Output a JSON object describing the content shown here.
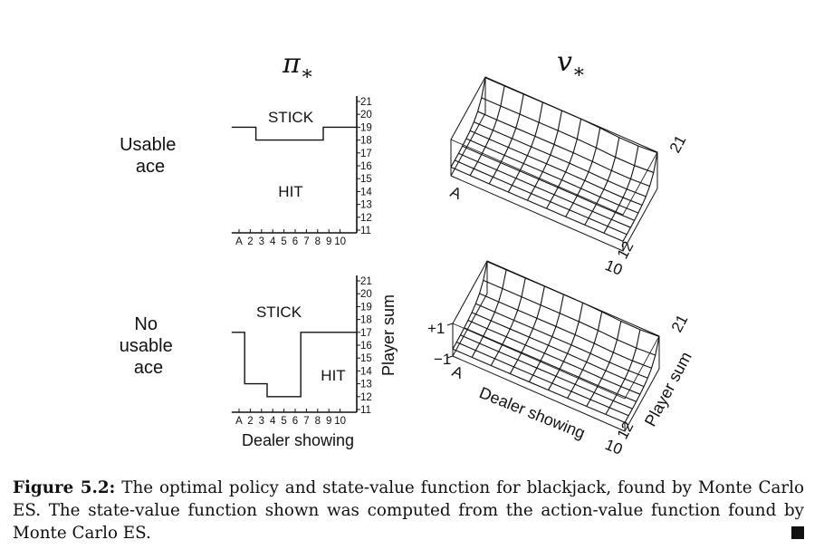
{
  "figure": {
    "titles": {
      "policy_symbol": "π",
      "value_symbol": "v",
      "subscript": "∗"
    },
    "rows": [
      {
        "label": [
          "Usable",
          "ace"
        ],
        "stick_label": "STICK",
        "hit_label": "HIT",
        "policy_boundary": [
          19,
          19,
          18,
          18,
          18,
          18,
          18,
          18,
          19,
          19
        ]
      },
      {
        "label": [
          "No",
          "usable",
          "ace"
        ],
        "stick_label": "STICK",
        "hit_label": "HIT",
        "policy_boundary": [
          17,
          13,
          13,
          12,
          12,
          12,
          17,
          17,
          17,
          17
        ]
      }
    ],
    "dealer_ticks": [
      "A",
      "2",
      "3",
      "4",
      "5",
      "6",
      "7",
      "8",
      "9",
      "10"
    ],
    "player_ticks": [
      "11",
      "12",
      "13",
      "14",
      "15",
      "16",
      "17",
      "18",
      "19",
      "20",
      "21"
    ],
    "policy_xlabel": "Dealer showing",
    "policy_ylabel": "Player sum",
    "surface_labels": {
      "dealer_first": "A",
      "dealer_last": "10",
      "player_first": "12",
      "player_last": "21",
      "z_top": "+1",
      "z_bottom": "−1",
      "xlabel": "Dealer showing",
      "ylabel": "Player sum"
    }
  },
  "caption": {
    "label": "Figure 5.2:",
    "text": "The optimal policy and state-value function for blackjack, found by Monte Carlo ES. The state-value function shown was computed from the action-value function found by Monte Carlo ES."
  }
}
